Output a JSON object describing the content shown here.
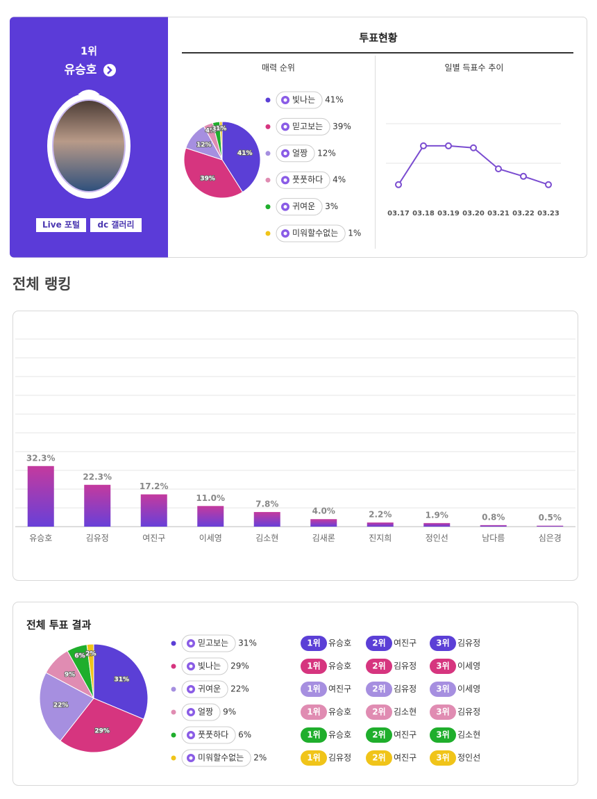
{
  "profile": {
    "rank": "1위",
    "name": "유승호",
    "buttons": [
      "Live 포털",
      "dc 갤러리"
    ]
  },
  "vote_status": {
    "title": "투표현황"
  },
  "chart_data": [
    {
      "type": "pie",
      "title": "매력 순위",
      "categories": [
        "빛나는",
        "믿고보는",
        "얼짱",
        "풋풋하다",
        "귀여운",
        "미워할수없는"
      ],
      "values": [
        41,
        39,
        12,
        4,
        3,
        1
      ],
      "value_labels": [
        "41%",
        "39%",
        "12%",
        "4%",
        "3%",
        "1%"
      ],
      "colors": [
        "#5b3fd6",
        "#d6357f",
        "#a68fe0",
        "#e08cb2",
        "#1fae2c",
        "#f0c419"
      ]
    },
    {
      "type": "line",
      "title": "일별 득표수 추이",
      "categories": [
        "03.17",
        "03.18",
        "03.19",
        "03.20",
        "03.21",
        "03.22",
        "03.23"
      ],
      "values": [
        46,
        144,
        144,
        139,
        86,
        67,
        46
      ],
      "ylim": [
        0,
        200
      ],
      "yticks": [
        100,
        200
      ],
      "grid": true,
      "color": "#7a4cd0"
    },
    {
      "type": "bar",
      "title": "전체 랭킹",
      "categories": [
        "유승호",
        "김유정",
        "여진구",
        "이세영",
        "김소현",
        "김새론",
        "진지희",
        "정인선",
        "남다름",
        "심은경"
      ],
      "values": [
        32.3,
        22.3,
        17.2,
        11.0,
        7.8,
        4.0,
        2.2,
        1.9,
        0.8,
        0.5
      ],
      "value_labels": [
        "32.3%",
        "22.3%",
        "17.2%",
        "11.0%",
        "7.8%",
        "4.0%",
        "2.2%",
        "1.9%",
        "0.8%",
        "0.5%"
      ],
      "ylim": [
        0,
        100
      ],
      "yticks": [
        0,
        10,
        20,
        30,
        40,
        50,
        60,
        70,
        80,
        90,
        100
      ],
      "grid": true
    },
    {
      "type": "pie",
      "title": "전체 투표 결과",
      "categories": [
        "믿고보는",
        "빛나는",
        "귀여운",
        "얼짱",
        "풋풋하다",
        "미워할수없는"
      ],
      "values": [
        31,
        29,
        22,
        9,
        6,
        2
      ],
      "value_labels": [
        "31%",
        "29%",
        "22%",
        "9%",
        "6%",
        "2%"
      ],
      "colors": [
        "#5b3fd6",
        "#d6357f",
        "#a68fe0",
        "#e08cb2",
        "#1fae2c",
        "#f0c419"
      ]
    }
  ],
  "rank_table": {
    "rank_labels": [
      "1위",
      "2위",
      "3위"
    ],
    "rows": [
      [
        "유승호",
        "여진구",
        "김유정"
      ],
      [
        "유승호",
        "김유정",
        "이세영"
      ],
      [
        "여진구",
        "김유정",
        "이세영"
      ],
      [
        "유승호",
        "김소현",
        "김유정"
      ],
      [
        "유승호",
        "여진구",
        "김소현"
      ],
      [
        "김유정",
        "여진구",
        "정인선"
      ]
    ]
  }
}
